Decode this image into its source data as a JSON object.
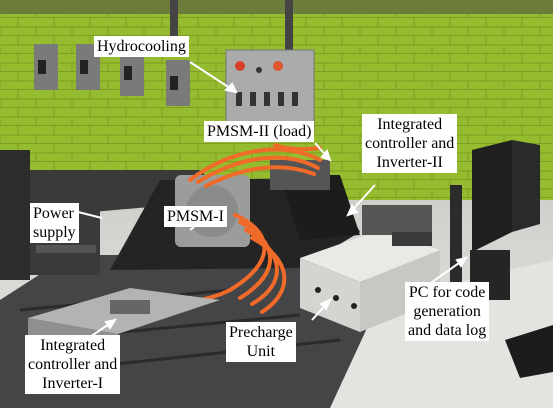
{
  "labels": {
    "hydrocooling": "Hydrocooling",
    "pmsm2": "PMSM-II (load)",
    "ctrl2": "Integrated\ncontroller and\nInverter-II",
    "power_supply": "Power\nsupply",
    "pmsm1": "PMSM-I",
    "pc": "PC for code\ngeneration\nand data log",
    "precharge": "Precharge\nUnit",
    "ctrl1": "Integrated\ncontroller and\nInverter-I"
  },
  "colors": {
    "wall": "#8fb52a",
    "cable": "#f06a2a",
    "floor": "#d9d9d6",
    "bench": "#2a2a2a"
  }
}
